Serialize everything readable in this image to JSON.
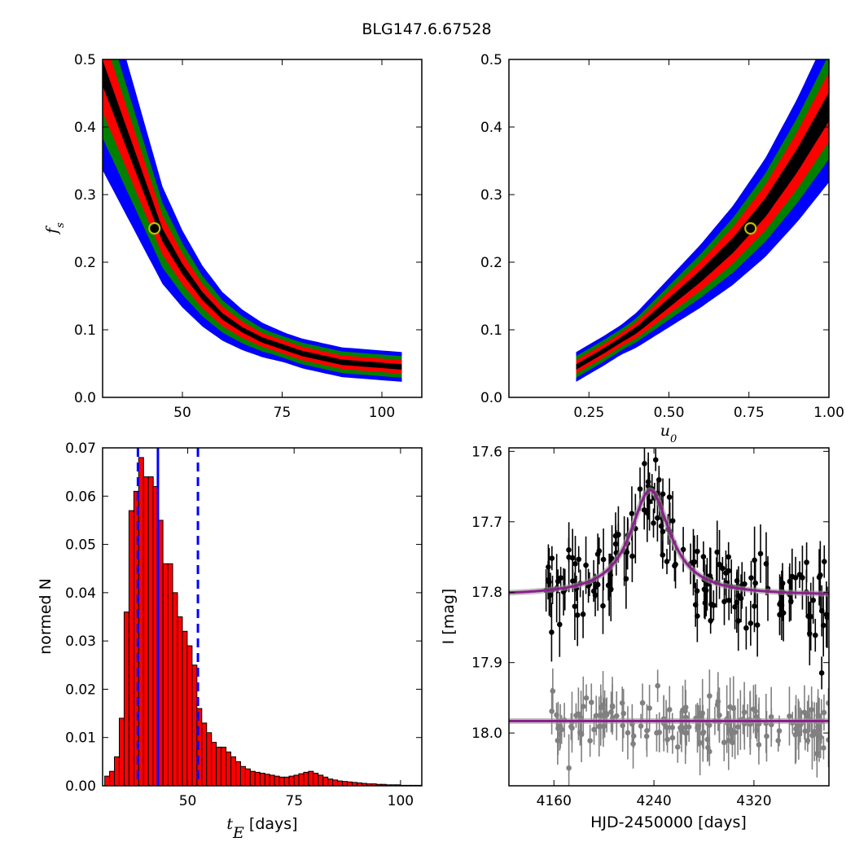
{
  "figure": {
    "title": "BLG147.6.67528"
  },
  "colors": {
    "sigma1": "#000000",
    "sigma2": "#ff0000",
    "sigma3": "#008000",
    "sigma4": "#0000ff",
    "marker_edge": "#bfbf00",
    "hist_bar": "#ff0000",
    "hist_line": "#0000ff",
    "data_main": "#000000",
    "data_resid": "#808080",
    "model": "#8b1f8b",
    "model_band": "#999999"
  },
  "chart_data": [
    {
      "id": "tE-fs",
      "type": "heatmap",
      "xlabel": "",
      "ylabel": "f_s",
      "ylabel_sub": "s",
      "xlim": [
        30,
        110
      ],
      "ylim": [
        0.0,
        0.5
      ],
      "xticks": [
        50,
        75,
        100
      ],
      "yticks": [
        0.0,
        0.1,
        0.2,
        0.3,
        0.4,
        0.5
      ],
      "best_fit": {
        "x": 43.0,
        "y": 0.25
      },
      "ridge": [
        [
          30,
          0.48
        ],
        [
          35,
          0.4
        ],
        [
          40,
          0.32
        ],
        [
          45,
          0.24
        ],
        [
          50,
          0.19
        ],
        [
          55,
          0.15
        ],
        [
          60,
          0.12
        ],
        [
          65,
          0.1
        ],
        [
          70,
          0.085
        ],
        [
          80,
          0.065
        ],
        [
          90,
          0.052
        ],
        [
          105,
          0.045
        ]
      ],
      "contour_halfwidth_frac": [
        0.04,
        0.12,
        0.2,
        0.3
      ],
      "contour_levels": [
        "1 sigma",
        "2 sigma",
        "3 sigma",
        "4 sigma"
      ]
    },
    {
      "id": "u0-fs",
      "type": "heatmap",
      "xlabel": "u_0",
      "xlabel_sub": "0",
      "ylabel": "",
      "xlim": [
        0.0,
        1.0
      ],
      "ylim": [
        0.0,
        0.5
      ],
      "xticks": [
        0.25,
        0.5,
        0.75,
        1.0
      ],
      "xtick_labels": [
        "0.25",
        "0.50",
        "0.75",
        "1.00"
      ],
      "yticks": [
        0.0,
        0.1,
        0.2,
        0.3,
        0.4,
        0.5
      ],
      "best_fit": {
        "x": 0.755,
        "y": 0.25
      },
      "ridge": [
        [
          0.21,
          0.045
        ],
        [
          0.3,
          0.07
        ],
        [
          0.4,
          0.1
        ],
        [
          0.5,
          0.14
        ],
        [
          0.6,
          0.18
        ],
        [
          0.7,
          0.225
        ],
        [
          0.8,
          0.28
        ],
        [
          0.9,
          0.35
        ],
        [
          1.0,
          0.43
        ]
      ],
      "contour_halfwidth_frac": [
        0.05,
        0.12,
        0.18,
        0.26
      ],
      "contour_levels": [
        "1 sigma",
        "2 sigma",
        "3 sigma",
        "4 sigma"
      ]
    },
    {
      "id": "tE-hist",
      "type": "bar",
      "xlabel": "t_E",
      "xlabel_sub": "E",
      "xlabel_unit": "[days]",
      "ylabel": "normed N",
      "xlim": [
        30,
        105
      ],
      "ylim": [
        0.0,
        0.07
      ],
      "xticks": [
        50,
        75,
        100
      ],
      "yticks": [
        0.0,
        0.01,
        0.02,
        0.03,
        0.04,
        0.05,
        0.06,
        0.07
      ],
      "bin_start": 30.5,
      "bin_width": 1.14,
      "values": [
        0.002,
        0.003,
        0.006,
        0.014,
        0.036,
        0.057,
        0.061,
        0.068,
        0.064,
        0.064,
        0.062,
        0.055,
        0.046,
        0.046,
        0.04,
        0.035,
        0.032,
        0.029,
        0.025,
        0.016,
        0.013,
        0.011,
        0.009,
        0.008,
        0.008,
        0.007,
        0.006,
        0.005,
        0.004,
        0.0035,
        0.003,
        0.0028,
        0.0026,
        0.0024,
        0.0022,
        0.002,
        0.0018,
        0.0018,
        0.002,
        0.0022,
        0.0025,
        0.0028,
        0.003,
        0.0026,
        0.0022,
        0.0018,
        0.0014,
        0.0012,
        0.001,
        0.0009,
        0.0008,
        0.0007,
        0.0006,
        0.0005,
        0.0004,
        0.0004,
        0.0003,
        0.0003,
        0.0002,
        0.0002,
        0.0002,
        0.0001,
        0.0001,
        0.0001,
        0.0001,
        0.0001
      ],
      "median": 43.0,
      "sigma_lines": [
        38.3,
        52.4
      ]
    },
    {
      "id": "lightcurve",
      "type": "scatter",
      "xlabel": "HJD-2450000 [days]",
      "ylabel": "I [mag]",
      "xlim": [
        4124,
        4380
      ],
      "ylim": [
        18.075,
        17.595
      ],
      "xticks": [
        4160,
        4240,
        4320
      ],
      "yticks": [
        17.6,
        17.7,
        17.8,
        17.9,
        18.0
      ],
      "model_main": {
        "baseline": 17.805,
        "t0": 4237,
        "tE": 43,
        "amp": 0.15
      },
      "model_resid_level": 17.983,
      "series": [
        {
          "role": "data",
          "seed": 7,
          "n": 160,
          "x_range": [
            4152,
            4380
          ],
          "scatter": 0.03,
          "err": [
            0.015,
            0.05
          ]
        },
        {
          "role": "residuals",
          "seed": 13,
          "n": 160,
          "x_range": [
            4152,
            4380
          ],
          "scatter": 0.02,
          "err": [
            0.015,
            0.05
          ]
        }
      ]
    }
  ]
}
